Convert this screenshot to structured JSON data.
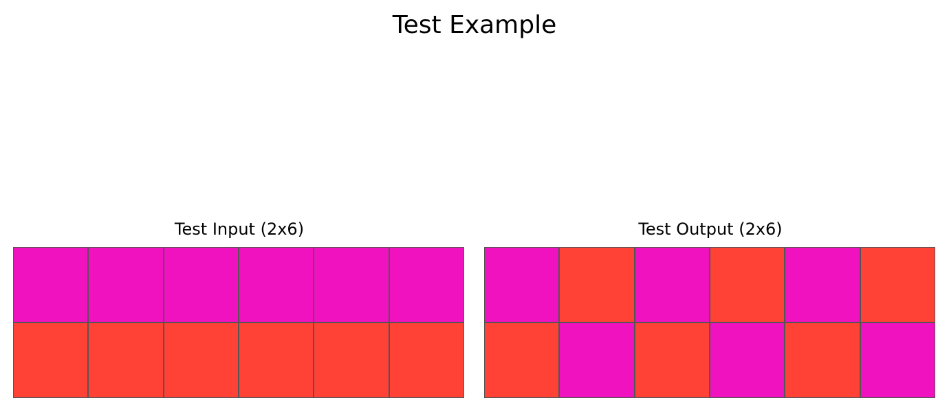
{
  "title": "Test Example",
  "colors": {
    "6": "#F012BE",
    "2": "#FF4136"
  },
  "panels": [
    {
      "title": "Test Input (2x6)",
      "grid": [
        [
          6,
          6,
          6,
          6,
          6,
          6
        ],
        [
          2,
          2,
          2,
          2,
          2,
          2
        ]
      ]
    },
    {
      "title": "Test Output (2x6)",
      "grid": [
        [
          6,
          2,
          6,
          2,
          6,
          2
        ],
        [
          2,
          6,
          2,
          6,
          2,
          6
        ]
      ]
    }
  ]
}
